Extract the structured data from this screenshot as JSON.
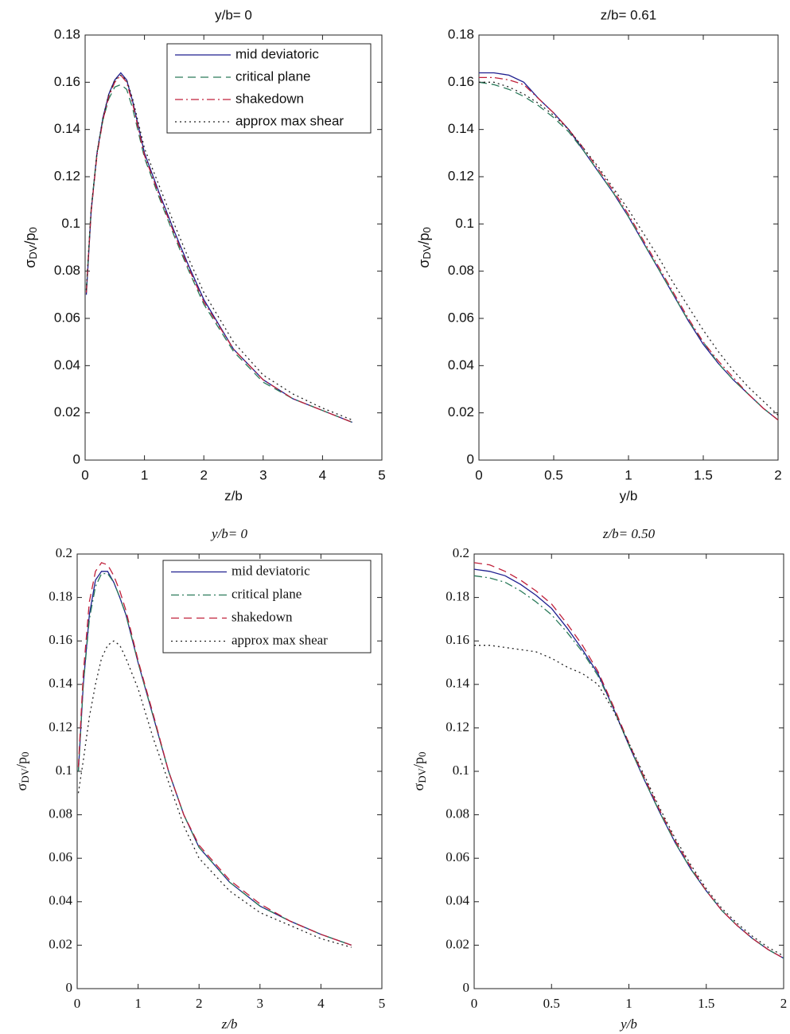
{
  "chart_data": [
    {
      "type": "line",
      "title": "y/b= 0",
      "xlabel": "z/b",
      "ylabel": [
        "σ",
        "DV",
        "/p",
        "0"
      ],
      "x": [
        0.02,
        0.1,
        0.2,
        0.3,
        0.4,
        0.5,
        0.6,
        0.7,
        0.8,
        1.0,
        1.25,
        1.5,
        1.75,
        2,
        2.5,
        3,
        3.5,
        4,
        4.5
      ],
      "series": [
        {
          "name": "mid deviatoric",
          "color": "#1f1f8f",
          "dash": "solid",
          "values": [
            0.07,
            0.105,
            0.13,
            0.145,
            0.155,
            0.161,
            0.164,
            0.161,
            0.152,
            0.13,
            0.113,
            0.097,
            0.082,
            0.068,
            0.047,
            0.034,
            0.026,
            0.021,
            0.016
          ]
        },
        {
          "name": "critical plane",
          "color": "#2a7a5a",
          "dash": "dashed",
          "values": [
            0.072,
            0.106,
            0.13,
            0.144,
            0.153,
            0.158,
            0.159,
            0.157,
            0.149,
            0.128,
            0.111,
            0.095,
            0.08,
            0.066,
            0.046,
            0.033,
            0.026,
            0.021,
            0.016
          ]
        },
        {
          "name": "shakedown",
          "color": "#c0203a",
          "dash": "dashdot",
          "values": [
            0.071,
            0.105,
            0.129,
            0.144,
            0.154,
            0.16,
            0.163,
            0.16,
            0.151,
            0.129,
            0.112,
            0.096,
            0.081,
            0.067,
            0.047,
            0.034,
            0.026,
            0.021,
            0.016
          ]
        },
        {
          "name": "approx max shear",
          "color": "#222222",
          "dash": "dotted",
          "values": [
            0.072,
            0.106,
            0.13,
            0.145,
            0.155,
            0.161,
            0.163,
            0.161,
            0.153,
            0.132,
            0.116,
            0.1,
            0.085,
            0.071,
            0.05,
            0.036,
            0.028,
            0.022,
            0.017
          ]
        }
      ],
      "xlim": [
        0,
        5
      ],
      "xticks": [
        0,
        1,
        2,
        3,
        4,
        5
      ],
      "ylim": [
        0,
        0.18
      ],
      "yticks": [
        0,
        0.02,
        0.04,
        0.06,
        0.08,
        0.1,
        0.12,
        0.14,
        0.16,
        0.18
      ],
      "legend": "upper right"
    },
    {
      "type": "line",
      "title": "z/b= 0.61",
      "xlabel": "y/b",
      "ylabel": [
        "σ",
        "DV",
        "/p",
        "0"
      ],
      "x": [
        0,
        0.1,
        0.2,
        0.3,
        0.4,
        0.5,
        0.6,
        0.7,
        0.8,
        0.9,
        1.0,
        1.1,
        1.2,
        1.3,
        1.4,
        1.5,
        1.6,
        1.7,
        1.8,
        1.9,
        2.0
      ],
      "series": [
        {
          "name": "mid deviatoric",
          "color": "#1f1f8f",
          "dash": "solid",
          "values": [
            0.164,
            0.164,
            0.163,
            0.16,
            0.153,
            0.147,
            0.14,
            0.131,
            0.122,
            0.113,
            0.103,
            0.092,
            0.081,
            0.07,
            0.059,
            0.049,
            0.041,
            0.034,
            0.028,
            0.022,
            0.017
          ]
        },
        {
          "name": "critical plane",
          "color": "#2a7a5a",
          "dash": "dashed",
          "values": [
            0.16,
            0.159,
            0.157,
            0.154,
            0.15,
            0.145,
            0.139,
            0.131,
            0.122,
            0.113,
            0.103,
            0.092,
            0.081,
            0.07,
            0.059,
            0.05,
            0.041,
            0.034,
            0.028,
            0.022,
            0.017
          ]
        },
        {
          "name": "shakedown",
          "color": "#c0203a",
          "dash": "dashdot",
          "values": [
            0.162,
            0.162,
            0.161,
            0.159,
            0.153,
            0.147,
            0.14,
            0.132,
            0.123,
            0.114,
            0.104,
            0.093,
            0.082,
            0.071,
            0.06,
            0.05,
            0.042,
            0.035,
            0.028,
            0.022,
            0.017
          ]
        },
        {
          "name": "approx max shear",
          "color": "#222222",
          "dash": "dotted",
          "values": [
            0.16,
            0.16,
            0.158,
            0.155,
            0.151,
            0.146,
            0.14,
            0.132,
            0.124,
            0.115,
            0.106,
            0.096,
            0.086,
            0.075,
            0.065,
            0.055,
            0.046,
            0.038,
            0.031,
            0.025,
            0.019
          ]
        }
      ],
      "xlim": [
        0,
        2
      ],
      "xticks": [
        0,
        0.5,
        1,
        1.5,
        2
      ],
      "ylim": [
        0,
        0.18
      ],
      "yticks": [
        0,
        0.02,
        0.04,
        0.06,
        0.08,
        0.1,
        0.12,
        0.14,
        0.16,
        0.18
      ]
    },
    {
      "type": "line",
      "title": "y/b= 0",
      "xlabel": "z/b",
      "ylabel": [
        "σ",
        "DV",
        "/p",
        "0"
      ],
      "x": [
        0.02,
        0.1,
        0.2,
        0.3,
        0.4,
        0.5,
        0.6,
        0.7,
        0.8,
        1.0,
        1.25,
        1.5,
        1.75,
        2,
        2.5,
        3,
        3.5,
        4,
        4.5
      ],
      "series": [
        {
          "name": "mid deviatoric",
          "color": "#1f1f8f",
          "dash": "solid",
          "values": [
            0.1,
            0.14,
            0.172,
            0.188,
            0.192,
            0.192,
            0.187,
            0.18,
            0.172,
            0.15,
            0.125,
            0.1,
            0.08,
            0.065,
            0.049,
            0.038,
            0.031,
            0.025,
            0.02
          ]
        },
        {
          "name": "critical plane",
          "color": "#2a7a5a",
          "dash": "dashdot",
          "values": [
            0.1,
            0.14,
            0.17,
            0.185,
            0.191,
            0.191,
            0.187,
            0.18,
            0.172,
            0.15,
            0.125,
            0.1,
            0.08,
            0.065,
            0.049,
            0.038,
            0.031,
            0.025,
            0.02
          ]
        },
        {
          "name": "shakedown",
          "color": "#c0203a",
          "dash": "dashed",
          "values": [
            0.102,
            0.145,
            0.178,
            0.192,
            0.196,
            0.195,
            0.19,
            0.183,
            0.174,
            0.151,
            0.126,
            0.1,
            0.08,
            0.066,
            0.05,
            0.039,
            0.031,
            0.025,
            0.02
          ]
        },
        {
          "name": "approx max shear",
          "color": "#222222",
          "dash": "dotted",
          "values": [
            0.09,
            0.105,
            0.125,
            0.14,
            0.152,
            0.158,
            0.16,
            0.158,
            0.152,
            0.138,
            0.115,
            0.095,
            0.075,
            0.06,
            0.045,
            0.035,
            0.029,
            0.023,
            0.019
          ]
        }
      ],
      "xlim": [
        0,
        5
      ],
      "xticks": [
        0,
        1,
        2,
        3,
        4,
        5
      ],
      "ylim": [
        0,
        0.2
      ],
      "yticks": [
        0,
        0.02,
        0.04,
        0.06,
        0.08,
        0.1,
        0.12,
        0.14,
        0.16,
        0.18,
        0.2
      ],
      "legend": "upper right"
    },
    {
      "type": "line",
      "title": "z/b= 0.50",
      "xlabel": "y/b",
      "ylabel": [
        "σ",
        "DV",
        "/p",
        "0"
      ],
      "x": [
        0,
        0.1,
        0.2,
        0.3,
        0.4,
        0.5,
        0.6,
        0.7,
        0.8,
        0.9,
        1.0,
        1.1,
        1.2,
        1.3,
        1.4,
        1.5,
        1.6,
        1.7,
        1.8,
        1.9,
        2.0
      ],
      "series": [
        {
          "name": "mid deviatoric",
          "color": "#1f1f8f",
          "dash": "solid",
          "values": [
            0.193,
            0.192,
            0.19,
            0.186,
            0.181,
            0.175,
            0.166,
            0.156,
            0.145,
            0.129,
            0.112,
            0.096,
            0.081,
            0.067,
            0.055,
            0.045,
            0.036,
            0.029,
            0.023,
            0.018,
            0.014
          ]
        },
        {
          "name": "critical plane",
          "color": "#2a7a5a",
          "dash": "dashdot",
          "values": [
            0.19,
            0.189,
            0.187,
            0.183,
            0.178,
            0.172,
            0.164,
            0.155,
            0.144,
            0.129,
            0.112,
            0.096,
            0.081,
            0.067,
            0.055,
            0.045,
            0.036,
            0.029,
            0.023,
            0.018,
            0.014
          ]
        },
        {
          "name": "shakedown",
          "color": "#c0203a",
          "dash": "dashed",
          "values": [
            0.196,
            0.195,
            0.192,
            0.188,
            0.183,
            0.177,
            0.168,
            0.158,
            0.146,
            0.13,
            0.113,
            0.097,
            0.082,
            0.068,
            0.056,
            0.045,
            0.036,
            0.029,
            0.023,
            0.018,
            0.014
          ]
        },
        {
          "name": "approx max shear",
          "color": "#222222",
          "dash": "dotted",
          "values": [
            0.158,
            0.158,
            0.157,
            0.156,
            0.155,
            0.152,
            0.148,
            0.145,
            0.14,
            0.128,
            0.113,
            0.098,
            0.083,
            0.069,
            0.057,
            0.046,
            0.037,
            0.03,
            0.024,
            0.019,
            0.015
          ]
        }
      ],
      "xlim": [
        0,
        2
      ],
      "xticks": [
        0,
        0.5,
        1,
        1.5,
        2
      ],
      "ylim": [
        0,
        0.2
      ],
      "yticks": [
        0,
        0.02,
        0.04,
        0.06,
        0.08,
        0.1,
        0.12,
        0.14,
        0.16,
        0.18,
        0.2
      ]
    }
  ]
}
